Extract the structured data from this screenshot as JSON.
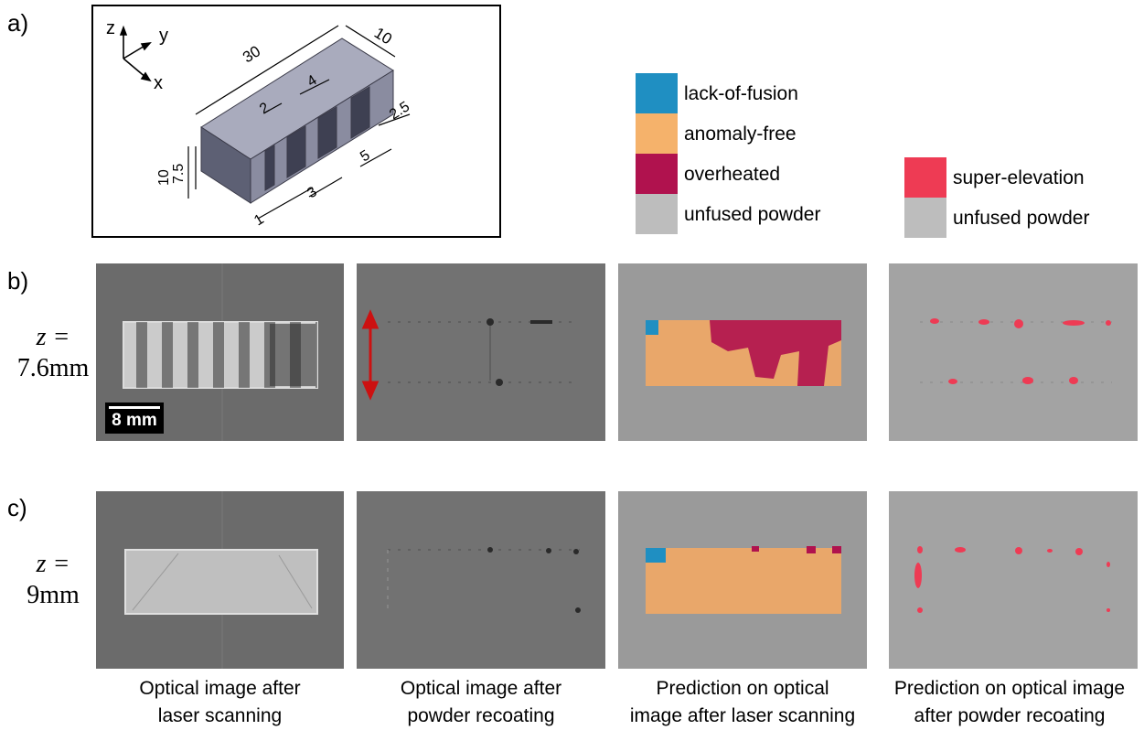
{
  "panel_labels": {
    "a": "a)",
    "b": "b)",
    "c": "c)"
  },
  "cad": {
    "axes": {
      "z": "z",
      "y": "y",
      "x": "x"
    },
    "dims": {
      "length": "30",
      "width": "10",
      "slot": "2",
      "pitch": "4",
      "edge": "2.5",
      "height": "10",
      "inner_height": "7.5",
      "gap": "3",
      "foot": "5",
      "step": "1"
    }
  },
  "legend_left": [
    {
      "label": "lack-of-fusion",
      "color": "#1f8fc2"
    },
    {
      "label": "anomaly-free",
      "color": "#f5b26b"
    },
    {
      "label": "overheated",
      "color": "#b0124e"
    },
    {
      "label": "unfused powder",
      "color": "#bdbdbd"
    }
  ],
  "legend_right": [
    {
      "label": "super-elevation",
      "color": "#ee3b54"
    },
    {
      "label": "unfused powder",
      "color": "#bdbdbd"
    }
  ],
  "rows": {
    "b": {
      "z_var": "z =",
      "z_val": "7.6mm"
    },
    "c": {
      "z_var": "z =",
      "z_val": "9mm"
    }
  },
  "scale_bar": "8 mm",
  "captions": [
    {
      "line1": "Optical image after",
      "line2": "laser scanning"
    },
    {
      "line1": "Optical image after",
      "line2": "powder recoating"
    },
    {
      "line1": "Prediction on optical",
      "line2": "image after laser scanning"
    },
    {
      "line1": "Prediction on optical image",
      "line2": "after powder recoating"
    }
  ]
}
